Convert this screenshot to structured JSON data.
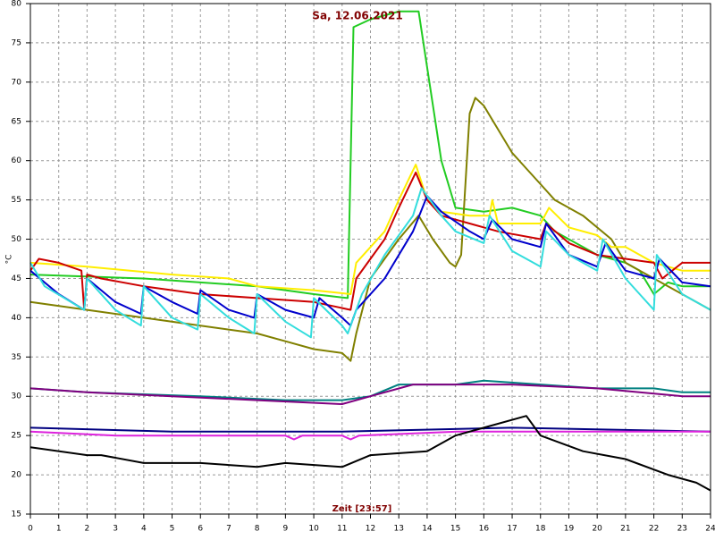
{
  "chart_data": {
    "type": "line",
    "title": "Sa, 12.06.2021",
    "x_label": "Zeit [23:57]",
    "y_label": "°C",
    "xlim": [
      0,
      24
    ],
    "xticks": [
      0,
      1,
      2,
      3,
      4,
      5,
      6,
      7,
      8,
      9,
      10,
      11,
      12,
      13,
      14,
      15,
      16,
      17,
      18,
      19,
      20,
      21,
      22,
      23,
      24
    ],
    "ylim": [
      15,
      80
    ],
    "yticks": [
      15,
      20,
      25,
      30,
      35,
      40,
      45,
      50,
      55,
      60,
      65,
      70,
      75,
      80
    ],
    "grid": true,
    "series": [
      {
        "color": "#22cc22",
        "x": [
          0,
          4,
          8,
          10,
          11.2,
          11.4,
          12,
          13,
          13.7,
          14.5,
          15,
          16,
          17,
          18,
          18.5,
          19.5,
          20,
          21,
          21.5,
          22,
          22.5,
          23,
          24
        ],
        "values": [
          45.5,
          45,
          44,
          43,
          42.5,
          77,
          78,
          79,
          79,
          60,
          54,
          53.5,
          54,
          53,
          51,
          49,
          48,
          47,
          46,
          43,
          44.5,
          44,
          44
        ]
      },
      {
        "color": "#808000",
        "x": [
          0,
          2,
          4,
          6,
          8,
          9,
          10,
          11,
          11.3,
          11.5,
          12,
          13,
          13.7,
          14.2,
          14.8,
          15,
          15.2,
          15.5,
          15.7,
          16,
          16.5,
          17,
          17.5,
          18,
          18.5,
          19.5,
          20.5,
          21,
          22,
          23,
          24
        ],
        "values": [
          42,
          41,
          40,
          39,
          38,
          37,
          36,
          35.5,
          34.5,
          38,
          45,
          50,
          53,
          50,
          47,
          46.5,
          48,
          66,
          68,
          67,
          64,
          61,
          59,
          57,
          55,
          53,
          50,
          47,
          45,
          43,
          41
        ]
      },
      {
        "color": "#ffee00",
        "x": [
          0,
          2,
          5,
          7,
          8,
          10,
          11.3,
          11.5,
          12.5,
          13,
          13.6,
          14,
          14.5,
          15.5,
          16.2,
          16.3,
          16.5,
          18,
          18.3,
          19,
          20,
          20.5,
          21,
          22,
          23,
          24
        ],
        "values": [
          47,
          46.5,
          45.5,
          45,
          44,
          43.5,
          43,
          47,
          51,
          55,
          59.5,
          55,
          53.5,
          53,
          53,
          55,
          52,
          52,
          54,
          51.5,
          50.5,
          49,
          49,
          47,
          46,
          46
        ]
      },
      {
        "color": "#cc0000",
        "x": [
          0,
          0.3,
          1,
          1.8,
          1.9,
          2,
          2.5,
          4,
          6,
          8,
          10,
          11.3,
          11.5,
          12.5,
          13,
          13.6,
          14,
          14.5,
          15.5,
          16.5,
          18,
          18.2,
          19,
          20,
          21,
          22,
          22.3,
          23,
          24
        ],
        "values": [
          46,
          47.5,
          47,
          46,
          41,
          45.5,
          45,
          44,
          43,
          42.5,
          42,
          41,
          45,
          50,
          54,
          58.5,
          55,
          53,
          52,
          51,
          50,
          52,
          49.5,
          48,
          47.5,
          47,
          45,
          47,
          47
        ]
      },
      {
        "color": "#0000cc",
        "x": [
          0,
          1,
          1.9,
          2,
          3,
          3.9,
          4,
          5,
          5.9,
          6,
          7,
          7.9,
          8,
          9,
          10,
          10.2,
          11,
          11.3,
          11.5,
          12.5,
          13.5,
          14,
          14.5,
          15.5,
          16,
          16.3,
          17,
          18,
          18.2,
          19,
          20,
          20.3,
          21,
          22,
          22.2,
          23,
          24
        ],
        "values": [
          46,
          43,
          41,
          45,
          42,
          40.5,
          44,
          42,
          40.5,
          43.5,
          41,
          40,
          43,
          41,
          40,
          42.5,
          40,
          39,
          41,
          45,
          51,
          55.5,
          53.5,
          51,
          50,
          52.5,
          50,
          49,
          52,
          48,
          46.5,
          49.5,
          46,
          45,
          47.5,
          44.5,
          44
        ]
      },
      {
        "color": "#33dddd",
        "x": [
          0,
          0.5,
          1.9,
          2,
          3,
          3.9,
          4,
          5,
          5.9,
          6,
          7,
          7.9,
          8,
          9,
          9.9,
          10,
          11,
          11.2,
          11.7,
          12.5,
          13.5,
          13.8,
          14.5,
          15,
          16,
          16.2,
          17,
          18,
          18.2,
          19,
          20,
          20.2,
          21,
          21.5,
          22,
          22.1,
          23,
          24
        ],
        "values": [
          47,
          44,
          41,
          45,
          41,
          39,
          44,
          40,
          38.5,
          43,
          40,
          38,
          43,
          39.5,
          37.5,
          42.5,
          39,
          38,
          43,
          48,
          53,
          56.5,
          53,
          51,
          49.5,
          53,
          48.5,
          46.5,
          51,
          48,
          46,
          50,
          45,
          43,
          41,
          48,
          43,
          41
        ]
      },
      {
        "color": "#008080",
        "x": [
          0,
          2,
          6,
          9,
          11,
          12,
          13,
          15,
          16,
          18,
          20,
          22,
          23,
          24
        ],
        "values": [
          31,
          30.5,
          30,
          29.5,
          29.5,
          30,
          31.5,
          31.5,
          32,
          31.5,
          31,
          31,
          30.5,
          30.5
        ]
      },
      {
        "color": "#800080",
        "x": [
          0,
          2,
          5,
          8,
          11,
          12,
          13.5,
          17,
          20,
          23,
          24
        ],
        "values": [
          31,
          30.5,
          30,
          29.5,
          29,
          30,
          31.5,
          31.5,
          31,
          30,
          30
        ]
      },
      {
        "color": "#000080",
        "x": [
          0,
          5,
          11,
          17,
          24
        ],
        "values": [
          26,
          25.5,
          25.5,
          26,
          25.5
        ]
      },
      {
        "color": "#dd22dd",
        "x": [
          0,
          3,
          9,
          9.3,
          9.6,
          11,
          11.3,
          11.6,
          15,
          24
        ],
        "values": [
          25.5,
          25,
          25,
          24.5,
          25,
          25,
          24.5,
          25,
          25.5,
          25.5
        ]
      },
      {
        "color": "#000000",
        "x": [
          0,
          2,
          2.5,
          4,
          6,
          8,
          9,
          11,
          12,
          14,
          15,
          16,
          17.5,
          18,
          19.5,
          21,
          22.5,
          23.5,
          24
        ],
        "values": [
          23.5,
          22.5,
          22.5,
          21.5,
          21.5,
          21,
          21.5,
          21,
          22.5,
          23,
          25,
          26,
          27.5,
          25,
          23,
          22,
          20,
          19,
          18
        ]
      }
    ]
  }
}
